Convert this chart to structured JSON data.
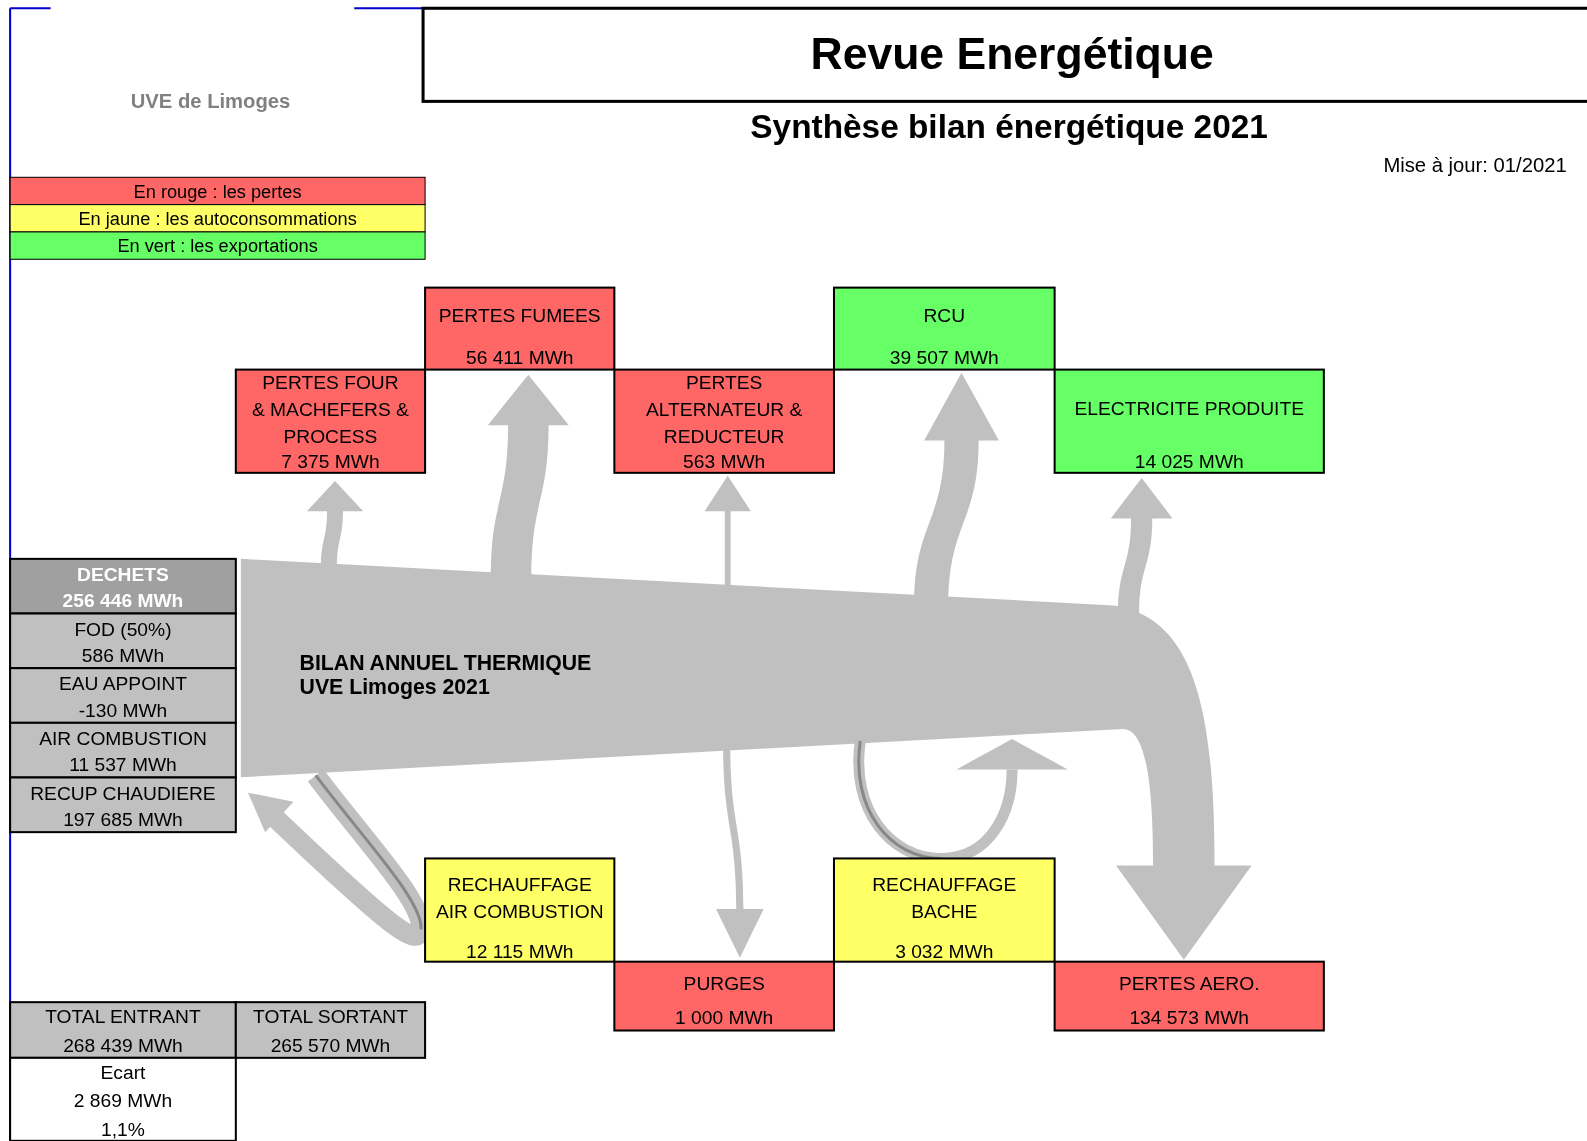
{
  "chart_data": {
    "type": "other",
    "title": "Revue Energétique",
    "subtitle": "Synthèse bilan énergétique 2021",
    "categories": [
      "DECHETS",
      "FOD (50%)",
      "EAU APPOINT",
      "AIR COMBUSTION",
      "RECUP CHAUDIERE",
      "PERTES FOUR\n& MACHEFERS &\nPROCESS",
      "PERTES FUMEES",
      "PERTES\nALTERNATEUR &\nREDUCTEUR",
      "RCU",
      "ELECTRICITE PRODUITE",
      "RECHAUFFAGE\nAIR COMBUSTION",
      "PURGES",
      "RECHAUFFAGE\nBACHE",
      "PERTES  AERO."
    ],
    "values": [
      256446,
      586,
      -130,
      11537,
      197685,
      7375,
      56411,
      563,
      39507,
      14025,
      12115,
      1000,
      3032,
      134573
    ],
    "value_labels": [
      "256 446 MWh",
      "586 MWh",
      "-130 MWh",
      "11 537 MWh",
      "197 685 MWh",
      "7 375 MWh",
      "56 411 MWh",
      "563 MWh",
      "39 507 MWh",
      "14 025 MWh",
      "12 115 MWh",
      "1 000 MWh",
      "3 032 MWh",
      "134 573 MWh"
    ],
    "colors": [
      "#a0a0a0",
      "#c0c0c0",
      "#c0c0c0",
      "#c0c0c0",
      "#c0c0c0",
      "#ff6666",
      "#ff6666",
      "#ff6666",
      "#66ff66",
      "#66ff66",
      "#ffff66",
      "#ff6666",
      "#ffff66",
      "#ff6666"
    ],
    "annotations": [
      "UVE de Limoges",
      "Mise à jour: 01/2021",
      "En rouge : les pertes",
      "En jaune : les autoconsommations",
      "En vert : les exportations",
      "BILAN ANNUEL  THERMIQUE",
      "UVE Limoges 2021",
      "TOTAL ENTRANT\n268 439 MWh",
      "TOTAL SORTANT\n265 570 MWh",
      "Ecart\n2 869 MWh\n1,1%"
    ]
  }
}
